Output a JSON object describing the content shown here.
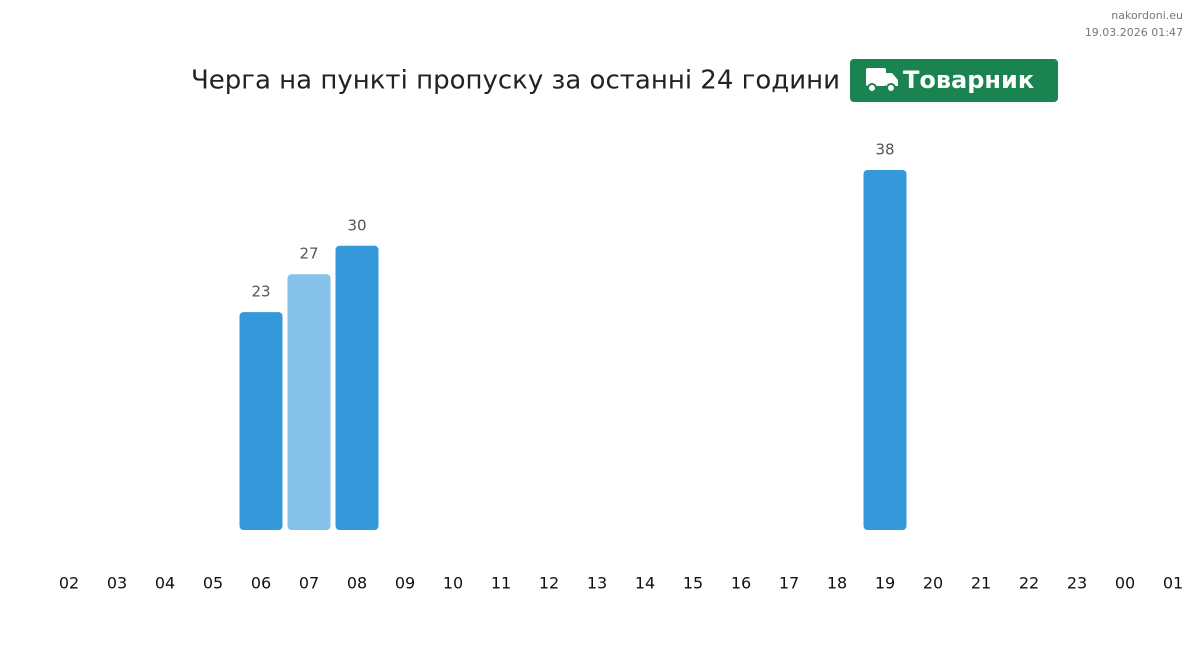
{
  "header": {
    "site": "nakordoni.eu",
    "timestamp": "19.03.2026 01:47"
  },
  "chart_data": {
    "type": "bar",
    "title": "Черга на пункті пропуску за останні 24 години",
    "badge": "Товарник",
    "categories": [
      "02",
      "03",
      "04",
      "05",
      "06",
      "07",
      "08",
      "09",
      "10",
      "11",
      "12",
      "13",
      "14",
      "15",
      "16",
      "17",
      "18",
      "19",
      "20",
      "21",
      "22",
      "23",
      "00",
      "01"
    ],
    "values": [
      null,
      null,
      null,
      null,
      23,
      27,
      30,
      null,
      null,
      null,
      null,
      null,
      null,
      null,
      null,
      null,
      null,
      38,
      null,
      null,
      null,
      null,
      null,
      null
    ],
    "colors": [
      null,
      null,
      null,
      null,
      "#3498db",
      "#85c1e9",
      "#3498db",
      null,
      null,
      null,
      null,
      null,
      null,
      null,
      null,
      null,
      null,
      "#3498db",
      null,
      null,
      null,
      null,
      null,
      null
    ]
  }
}
